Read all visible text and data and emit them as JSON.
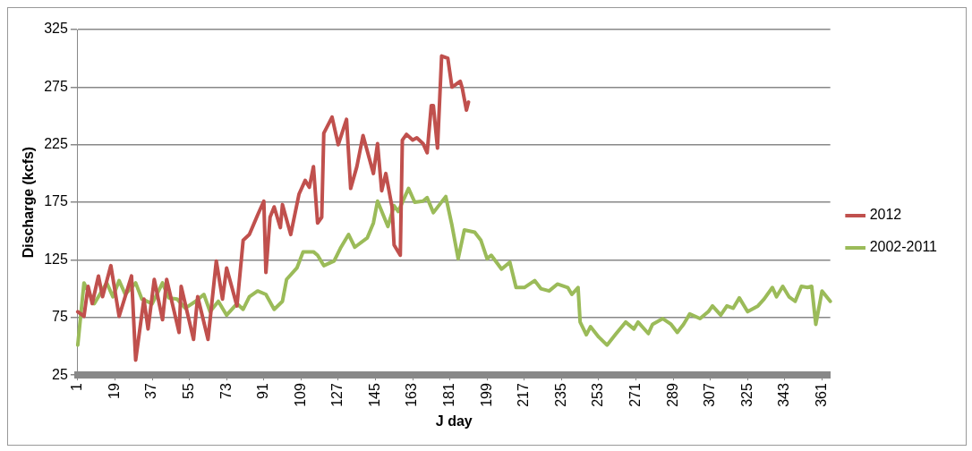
{
  "chart_data": {
    "type": "line",
    "xlabel": "J day",
    "ylabel": "Discharge (kcfs)",
    "xlim": [
      1,
      365
    ],
    "xticks": [
      1,
      19,
      37,
      55,
      73,
      91,
      109,
      127,
      145,
      163,
      181,
      199,
      217,
      235,
      253,
      271,
      289,
      307,
      325,
      343,
      361
    ],
    "ylim": [
      25,
      325
    ],
    "yticks": [
      25,
      75,
      125,
      175,
      225,
      275,
      325
    ],
    "grid": "y",
    "legend": "right",
    "marker": "none",
    "line_style": "solid",
    "series": [
      {
        "name": "2012",
        "color": "#c0504d",
        "x": [
          1,
          4,
          6,
          8,
          11,
          13,
          17,
          21,
          27,
          29,
          33,
          35,
          38,
          42,
          44,
          47,
          50,
          51,
          57,
          59,
          64,
          68,
          71,
          73,
          78,
          81,
          84,
          88,
          91,
          92,
          94,
          96,
          99,
          100,
          104,
          108,
          111,
          113,
          115,
          117,
          119,
          120,
          124,
          127,
          131,
          133,
          136,
          139,
          144,
          146,
          148,
          150,
          153,
          154,
          157,
          158,
          160,
          163,
          165,
          168,
          170,
          172,
          173,
          175,
          177,
          180,
          182,
          186,
          187,
          189,
          190
        ],
        "values": [
          80,
          76,
          102,
          87,
          111,
          93,
          120,
          76,
          111,
          38,
          91,
          65,
          108,
          73,
          108,
          85,
          62,
          102,
          56,
          93,
          56,
          124,
          91,
          118,
          85,
          142,
          147,
          164,
          176,
          114,
          162,
          171,
          153,
          173,
          147,
          182,
          194,
          188,
          206,
          157,
          162,
          235,
          249,
          225,
          247,
          187,
          206,
          233,
          200,
          226,
          185,
          200,
          171,
          138,
          129,
          229,
          234,
          229,
          231,
          226,
          218,
          259,
          259,
          222,
          302,
          300,
          275,
          280,
          274,
          255,
          262
        ]
      },
      {
        "name": "2002-2011",
        "color": "#9bbb59",
        "x": [
          1,
          4,
          9,
          15,
          18,
          21,
          24,
          29,
          32,
          37,
          42,
          45,
          49,
          53,
          58,
          62,
          65,
          69,
          73,
          78,
          81,
          84,
          88,
          92,
          96,
          100,
          102,
          107,
          110,
          115,
          117,
          120,
          125,
          128,
          132,
          135,
          141,
          144,
          146,
          151,
          154,
          156,
          161,
          164,
          168,
          170,
          173,
          179,
          182,
          185,
          188,
          193,
          196,
          199,
          201,
          206,
          210,
          213,
          217,
          222,
          225,
          229,
          233,
          238,
          240,
          243,
          244,
          247,
          249,
          253,
          257,
          261,
          266,
          270,
          272,
          277,
          279,
          284,
          288,
          291,
          294,
          297,
          302,
          306,
          308,
          312,
          315,
          318,
          321,
          325,
          330,
          333,
          337,
          339,
          342,
          345,
          348,
          351,
          354,
          356,
          358,
          361,
          365
        ],
        "values": [
          51,
          105,
          87,
          105,
          93,
          107,
          95,
          105,
          91,
          87,
          105,
          92,
          91,
          83,
          89,
          95,
          80,
          89,
          77,
          87,
          82,
          93,
          98,
          95,
          82,
          89,
          108,
          118,
          132,
          132,
          129,
          120,
          124,
          135,
          147,
          136,
          144,
          157,
          176,
          154,
          172,
          167,
          187,
          175,
          176,
          179,
          166,
          180,
          155,
          126,
          151,
          149,
          142,
          126,
          129,
          117,
          123,
          101,
          101,
          107,
          100,
          98,
          104,
          101,
          95,
          101,
          71,
          60,
          67,
          58,
          51,
          60,
          71,
          65,
          71,
          61,
          69,
          74,
          69,
          62,
          69,
          78,
          74,
          80,
          85,
          77,
          85,
          83,
          92,
          80,
          85,
          91,
          101,
          93,
          102,
          93,
          89,
          102,
          101,
          102,
          69,
          98,
          89
        ]
      }
    ]
  }
}
